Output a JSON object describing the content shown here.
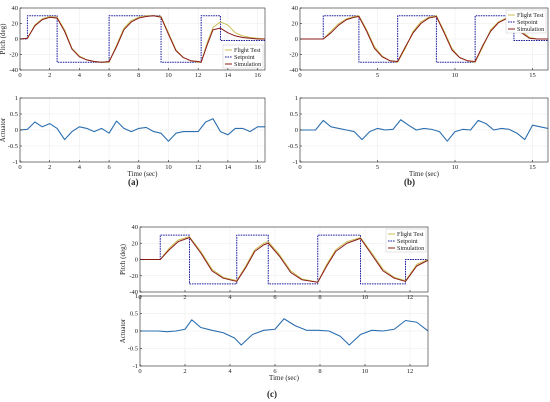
{
  "figure": {
    "panel_labels": [
      "(a)",
      "(b)",
      "(c)"
    ],
    "legend": [
      "Flight Test",
      "Setpoint",
      "Simulation"
    ]
  },
  "colors": {
    "flight_test": "#c9bd52",
    "setpoint": "#1f1f9e",
    "simulation": "#8b1a1a",
    "actuator": "#2c6fb0"
  },
  "chart_data": [
    {
      "type": "line",
      "panel": "a",
      "ylabel": "Pitch (deg)",
      "xlabel": "",
      "xlim": [
        0,
        16.5
      ],
      "ylim": [
        -40,
        40
      ],
      "xticks": [
        0,
        2,
        4,
        6,
        8,
        10,
        12,
        14,
        16
      ],
      "yticks": [
        -40,
        -20,
        0,
        20,
        40
      ],
      "legend_position": "bottom-right",
      "series": [
        {
          "name": "Setpoint",
          "x": [
            0,
            0.5,
            0.5,
            2.5,
            2.5,
            6.0,
            6.0,
            9.5,
            9.5,
            12.2,
            12.2,
            13.5,
            13.5,
            16.5
          ],
          "y": [
            0,
            0,
            30,
            30,
            -30,
            -30,
            30,
            30,
            -30,
            -30,
            30,
            30,
            -2,
            -2
          ]
        },
        {
          "name": "Flight Test",
          "x": [
            0,
            0.5,
            1.0,
            1.5,
            2.0,
            2.5,
            3.0,
            3.5,
            4.0,
            4.5,
            5.0,
            5.5,
            6.0,
            6.5,
            7.0,
            7.5,
            8.0,
            8.5,
            9.0,
            9.5,
            10.0,
            10.5,
            11.0,
            11.5,
            12.0,
            12.2,
            12.6,
            13.0,
            13.5,
            14.0,
            14.5,
            15.0,
            15.5,
            16.0,
            16.5
          ],
          "y": [
            0,
            1,
            18,
            26,
            29,
            28,
            12,
            -12,
            -22,
            -27,
            -29,
            -30,
            -30,
            -8,
            14,
            24,
            28,
            30,
            30,
            29,
            8,
            -14,
            -24,
            -28,
            -30,
            -30,
            -5,
            15,
            22,
            18,
            8,
            4,
            2,
            1,
            0
          ]
        },
        {
          "name": "Simulation",
          "x": [
            0,
            0.5,
            1.0,
            1.5,
            2.0,
            2.5,
            3.0,
            3.5,
            4.0,
            4.5,
            5.0,
            5.5,
            6.0,
            6.5,
            7.0,
            7.5,
            8.0,
            8.5,
            9.0,
            9.5,
            10.0,
            10.5,
            11.0,
            11.5,
            12.0,
            12.2,
            12.6,
            13.0,
            13.5,
            14.0,
            14.5,
            15.0,
            15.5,
            16.0,
            16.5
          ],
          "y": [
            0,
            1,
            17,
            25,
            28,
            27,
            10,
            -13,
            -23,
            -27,
            -29,
            -30,
            -29,
            -10,
            12,
            22,
            27,
            29,
            30,
            28,
            6,
            -15,
            -24,
            -28,
            -29,
            -30,
            -8,
            12,
            14,
            8,
            4,
            2,
            1,
            0,
            0
          ]
        }
      ]
    },
    {
      "type": "line",
      "panel": "a",
      "ylabel": "Actuator",
      "xlabel": "Time (sec)",
      "xlim": [
        0,
        16.5
      ],
      "ylim": [
        -1,
        1
      ],
      "xticks": [
        0,
        2,
        4,
        6,
        8,
        10,
        12,
        14,
        16
      ],
      "yticks": [
        -1,
        -0.5,
        0,
        0.5,
        1
      ],
      "series": [
        {
          "name": "Actuator",
          "x": [
            0,
            0.5,
            1.0,
            1.5,
            2.0,
            2.5,
            3.0,
            3.5,
            4.0,
            4.5,
            5.0,
            5.5,
            6.0,
            6.5,
            7.0,
            7.5,
            8.0,
            8.5,
            9.0,
            9.5,
            10.0,
            10.5,
            11.0,
            11.5,
            12.0,
            12.5,
            13.0,
            13.5,
            14.0,
            14.5,
            15.0,
            15.5,
            16.0,
            16.5
          ],
          "y": [
            0,
            0.02,
            0.25,
            0.1,
            0.2,
            0.05,
            -0.3,
            -0.05,
            0.1,
            0.05,
            -0.05,
            0.05,
            -0.1,
            0.28,
            0.05,
            -0.05,
            0.05,
            0.08,
            -0.05,
            -0.1,
            -0.35,
            -0.1,
            -0.05,
            -0.05,
            -0.05,
            0.25,
            0.35,
            -0.05,
            -0.15,
            0.05,
            0.05,
            -0.05,
            0.1,
            0.1
          ]
        }
      ]
    },
    {
      "type": "line",
      "panel": "b",
      "ylabel": "",
      "xlabel": "",
      "xlim": [
        0,
        16
      ],
      "ylim": [
        -40,
        40
      ],
      "xticks": [
        0,
        5,
        10,
        15
      ],
      "yticks": [
        -40,
        -20,
        0,
        20,
        40
      ],
      "legend_position": "top-right",
      "series": [
        {
          "name": "Setpoint",
          "x": [
            0,
            1.5,
            1.5,
            3.8,
            3.8,
            6.3,
            6.3,
            8.8,
            8.8,
            11.3,
            11.3,
            13.8,
            13.8,
            16
          ],
          "y": [
            0,
            0,
            30,
            30,
            -30,
            -30,
            30,
            30,
            -30,
            -30,
            30,
            30,
            -2,
            -2
          ]
        },
        {
          "name": "Flight Test",
          "x": [
            0,
            1.5,
            2.0,
            2.5,
            3.0,
            3.5,
            3.8,
            4.3,
            4.8,
            5.3,
            5.8,
            6.3,
            6.8,
            7.3,
            7.8,
            8.3,
            8.8,
            9.3,
            9.8,
            10.3,
            10.8,
            11.3,
            11.8,
            12.3,
            12.8,
            13.3,
            13.8,
            14.3,
            14.8,
            15.3,
            16
          ],
          "y": [
            0,
            0,
            10,
            20,
            26,
            29,
            30,
            12,
            -10,
            -22,
            -28,
            -30,
            -12,
            10,
            22,
            28,
            30,
            10,
            -12,
            -24,
            -28,
            -30,
            -10,
            12,
            22,
            27,
            29,
            10,
            2,
            0,
            0
          ]
        },
        {
          "name": "Simulation",
          "x": [
            0,
            1.5,
            2.0,
            2.5,
            3.0,
            3.5,
            3.8,
            4.3,
            4.8,
            5.3,
            5.8,
            6.3,
            6.8,
            7.3,
            7.8,
            8.3,
            8.8,
            9.3,
            9.8,
            10.3,
            10.8,
            11.3,
            11.8,
            12.3,
            12.8,
            13.3,
            13.8,
            14.3,
            14.8,
            15.3,
            16
          ],
          "y": [
            0,
            0,
            8,
            18,
            25,
            28,
            29,
            10,
            -12,
            -23,
            -28,
            -29,
            -10,
            8,
            20,
            27,
            29,
            8,
            -14,
            -24,
            -28,
            -29,
            -8,
            10,
            21,
            26,
            28,
            8,
            1,
            0,
            0
          ]
        }
      ]
    },
    {
      "type": "line",
      "panel": "b",
      "ylabel": "",
      "xlabel": "Time (sec)",
      "xlim": [
        0,
        16
      ],
      "ylim": [
        -1,
        1
      ],
      "xticks": [
        0,
        5,
        10,
        15
      ],
      "yticks": [
        -1,
        -0.5,
        0,
        0.5,
        1
      ],
      "series": [
        {
          "name": "Actuator",
          "x": [
            0,
            1.0,
            1.5,
            2.0,
            2.5,
            3.0,
            3.5,
            4.0,
            4.5,
            5.0,
            5.5,
            6.0,
            6.5,
            7.0,
            7.5,
            8.0,
            8.5,
            9.0,
            9.5,
            10.0,
            10.5,
            11.0,
            11.5,
            12.0,
            12.5,
            13.0,
            13.5,
            14.0,
            14.5,
            15.0,
            15.5,
            16.0
          ],
          "y": [
            0,
            0,
            0.3,
            0.1,
            0.05,
            0,
            -0.05,
            -0.3,
            -0.05,
            0.05,
            0,
            0.02,
            0.32,
            0.15,
            0,
            0.05,
            0.02,
            -0.05,
            -0.35,
            -0.05,
            0.02,
            0,
            0.3,
            0.2,
            0,
            0.05,
            0.02,
            -0.1,
            -0.3,
            0.15,
            0.1,
            0.05
          ]
        }
      ]
    },
    {
      "type": "line",
      "panel": "c",
      "ylabel": "Pitch (deg)",
      "xlabel": "",
      "xlim": [
        0,
        12.8
      ],
      "ylim": [
        -40,
        40
      ],
      "xticks": [
        0,
        2,
        4,
        6,
        8,
        10,
        12
      ],
      "yticks": [
        -40,
        -20,
        0,
        20,
        40
      ],
      "legend_position": "top-right",
      "series": [
        {
          "name": "Setpoint",
          "x": [
            0,
            0.9,
            0.9,
            2.2,
            2.2,
            4.3,
            4.3,
            5.7,
            5.7,
            7.9,
            7.9,
            9.8,
            9.8,
            11.8,
            11.8,
            12.8
          ],
          "y": [
            0,
            0,
            30,
            30,
            -30,
            -30,
            30,
            30,
            -30,
            -30,
            30,
            30,
            -30,
            -30,
            0,
            0
          ]
        },
        {
          "name": "Flight Test",
          "x": [
            0,
            0.9,
            1.3,
            1.7,
            2.2,
            2.7,
            3.2,
            3.7,
            4.3,
            4.7,
            5.1,
            5.5,
            5.7,
            6.2,
            6.7,
            7.2,
            7.9,
            8.3,
            8.7,
            9.2,
            9.8,
            10.3,
            10.8,
            11.3,
            11.8,
            12.3,
            12.8
          ],
          "y": [
            0,
            0,
            14,
            24,
            28,
            10,
            -12,
            -22,
            -26,
            -8,
            12,
            20,
            22,
            6,
            -14,
            -24,
            -28,
            -6,
            12,
            22,
            27,
            8,
            -12,
            -22,
            -26,
            -6,
            0
          ]
        },
        {
          "name": "Simulation",
          "x": [
            0,
            0.9,
            1.3,
            1.7,
            2.2,
            2.7,
            3.2,
            3.7,
            4.3,
            4.7,
            5.1,
            5.5,
            5.7,
            6.2,
            6.7,
            7.2,
            7.9,
            8.3,
            8.7,
            9.2,
            9.8,
            10.3,
            10.8,
            11.3,
            11.8,
            12.3,
            12.8
          ],
          "y": [
            0,
            0,
            12,
            22,
            27,
            8,
            -14,
            -23,
            -27,
            -10,
            10,
            18,
            20,
            4,
            -16,
            -25,
            -28,
            -8,
            10,
            20,
            26,
            6,
            -14,
            -23,
            -27,
            -8,
            -1
          ]
        }
      ]
    },
    {
      "type": "line",
      "panel": "c",
      "ylabel": "Actuator",
      "xlabel": "Time (sec)",
      "xlim": [
        0,
        12.8
      ],
      "ylim": [
        -1,
        1
      ],
      "xticks": [
        0,
        2,
        4,
        6,
        8,
        10,
        12
      ],
      "yticks": [
        -1,
        -0.5,
        0,
        0.5,
        1
      ],
      "series": [
        {
          "name": "Actuator",
          "x": [
            0,
            0.8,
            1.2,
            1.6,
            2.0,
            2.3,
            2.7,
            3.2,
            3.7,
            4.2,
            4.5,
            5.0,
            5.5,
            6.0,
            6.4,
            6.9,
            7.4,
            7.9,
            8.4,
            8.9,
            9.3,
            9.8,
            10.3,
            10.8,
            11.3,
            11.8,
            12.3,
            12.8
          ],
          "y": [
            0,
            0,
            -0.02,
            0,
            0.05,
            0.32,
            0.1,
            0.02,
            -0.05,
            -0.2,
            -0.4,
            -0.1,
            0.02,
            0.05,
            0.35,
            0.15,
            0.02,
            0.02,
            0,
            -0.15,
            -0.4,
            -0.1,
            0.02,
            0,
            0.05,
            0.3,
            0.25,
            0
          ]
        }
      ]
    }
  ]
}
